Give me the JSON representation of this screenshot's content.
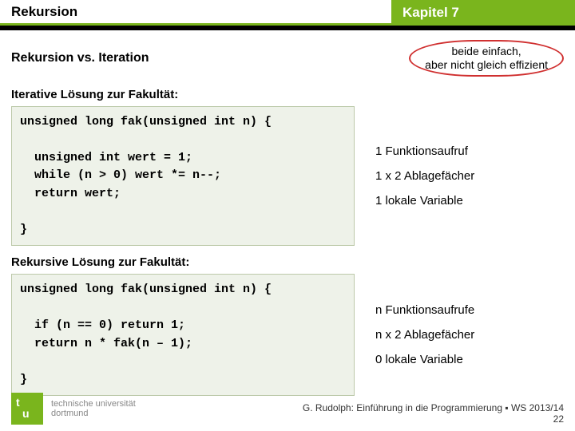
{
  "header": {
    "left": "Rekursion",
    "right": "Kapitel 7"
  },
  "subtitle": "Rekursion vs. Iteration",
  "callout": {
    "line1": "beide einfach,",
    "line2": "aber nicht gleich effizient"
  },
  "iterative": {
    "label": "Iterative Lösung zur Fakultät:",
    "code": "unsigned long fak(unsigned int n) {\n\n  unsigned int wert = 1;\n  while (n > 0) wert *= n--;\n  return wert;\n\n}",
    "notes": [
      "1 Funktionsaufruf",
      "1 x 2 Ablagefächer",
      "1 lokale Variable"
    ]
  },
  "recursive": {
    "label": "Rekursive Lösung zur Fakultät:",
    "code": "unsigned long fak(unsigned int n) {\n\n  if (n == 0) return 1;\n  return n * fak(n – 1);\n\n}",
    "notes": [
      "n Funktionsaufrufe",
      "n x 2 Ablagefächer",
      "0 lokale Variable"
    ]
  },
  "footer": {
    "uni1": "technische universität",
    "uni2": "dortmund",
    "credit": "G. Rudolph: Einführung in die Programmierung ▪ WS 2013/14",
    "page": "22"
  },
  "colors": {
    "accent": "#7ab51d",
    "callout_border": "#d03030",
    "code_bg": "#eef2e9",
    "code_border": "#bcc9a9"
  }
}
